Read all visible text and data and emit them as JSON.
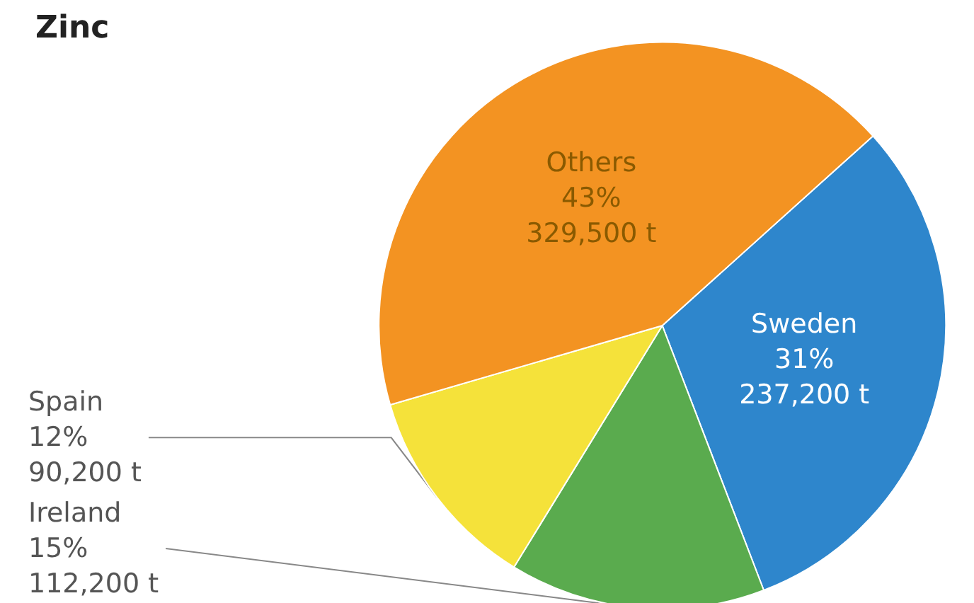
{
  "chart_data": {
    "type": "pie",
    "title": "Zinc",
    "categories": [
      "Sweden",
      "Ireland",
      "Spain",
      "Others"
    ],
    "values": [
      237200,
      112200,
      90200,
      329500
    ],
    "value_labels": [
      "31%\n237,200 t",
      "15%\n112,200 t",
      "12%\n90,200 t",
      "43%\n329,500 t"
    ],
    "colors": [
      "#2e86cc",
      "#5aab4e",
      "#f5e23a",
      "#f39322"
    ]
  }
}
